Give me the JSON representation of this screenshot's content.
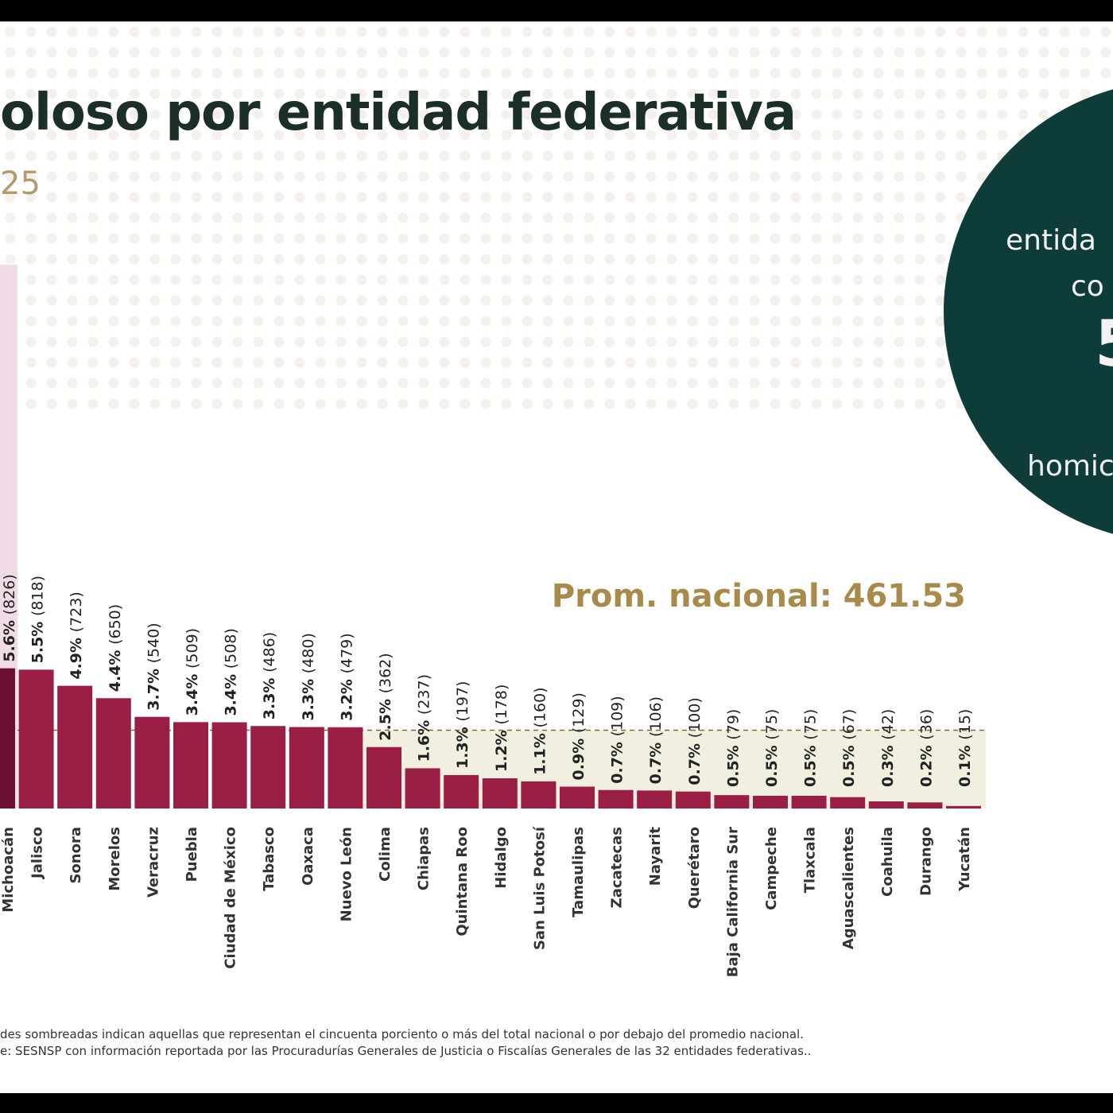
{
  "header": {
    "title": "oloso por entidad federativa",
    "subtitle": "25"
  },
  "circle": {
    "line1": "entida",
    "line2": "co",
    "number": "5",
    "line3": "homic",
    "color": "#0e3c38"
  },
  "chart_data": {
    "type": "bar",
    "categories": [
      "Michoacán",
      "Jalisco",
      "Sonora",
      "Morelos",
      "Veracruz",
      "Puebla",
      "Ciudad de México",
      "Tabasco",
      "Oaxaca",
      "Nuevo León",
      "Colima",
      "Chiapas",
      "Quintana Roo",
      "Hidalgo",
      "San Luis Potosí",
      "Tamaulipas",
      "Zacatecas",
      "Nayarit",
      "Querétaro",
      "Baja California Sur",
      "Campeche",
      "Tlaxcala",
      "Aguascalientes",
      "Coahuila",
      "Durango",
      "Yucatán"
    ],
    "values": [
      826,
      818,
      723,
      650,
      540,
      509,
      508,
      486,
      480,
      479,
      362,
      237,
      197,
      178,
      160,
      129,
      109,
      106,
      100,
      79,
      75,
      75,
      67,
      42,
      36,
      15
    ],
    "percent_labels": [
      "5.6%",
      "5.5%",
      "4.9%",
      "4.4%",
      "3.7%",
      "3.4%",
      "3.4%",
      "3.3%",
      "3.3%",
      "3.2%",
      "2.5%",
      "1.6%",
      "1.3%",
      "1.2%",
      "1.1%",
      "0.9%",
      "0.7%",
      "0.7%",
      "0.7%",
      "0.5%",
      "0.5%",
      "0.5%",
      "0.5%",
      "0.3%",
      "0.2%",
      "0.1%"
    ],
    "count_labels": [
      "(826)",
      "(818)",
      "(723)",
      "(650)",
      "(540)",
      "(509)",
      "(508)",
      "(486)",
      "(480)",
      "(479)",
      "(362)",
      "(237)",
      "(197)",
      "(178)",
      "(160)",
      "(129)",
      "(109)",
      "(106)",
      "(100)",
      "(79)",
      "(75)",
      "(75)",
      "(67)",
      "(42)",
      "(36)",
      "(15)"
    ],
    "average": {
      "label": "Prom. nacional: 461.53",
      "value": 461.53
    },
    "colors": {
      "bar": "#9b1f45",
      "first_bar": "#6b0f33",
      "highlight_top": "#f1dbe6",
      "highlight_below_avg": "#f1efdf",
      "average": "#a88a4a"
    }
  },
  "footnotes": [
    "des sombreadas indican aquellas que representan el cincuenta porciento o más del total nacional o por debajo del promedio nacional.",
    "e: SESNSP con información reportada por las Procuradurías Generales de Justicia o Fiscalías Generales de las 32 entidades federativas.."
  ]
}
